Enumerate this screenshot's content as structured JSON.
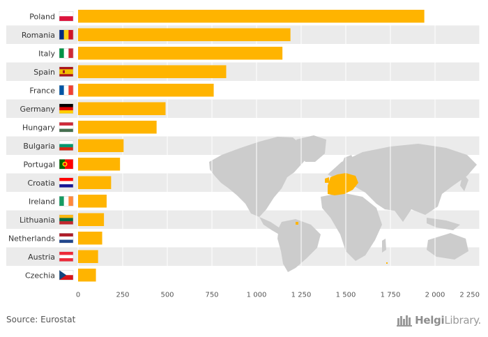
{
  "chart_data": {
    "type": "bar",
    "orientation": "horizontal",
    "categories": [
      "Poland",
      "Romania",
      "Italy",
      "Spain",
      "France",
      "Germany",
      "Hungary",
      "Bulgaria",
      "Portugal",
      "Croatia",
      "Ireland",
      "Lithuania",
      "Netherlands",
      "Austria",
      "Czechia"
    ],
    "values": [
      1940,
      1190,
      1145,
      830,
      760,
      490,
      440,
      255,
      235,
      185,
      160,
      145,
      135,
      112,
      100
    ],
    "x_ticks": [
      0,
      250,
      500,
      750,
      1000,
      1250,
      1500,
      1750,
      2000,
      2250
    ],
    "x_tick_labels": [
      "0",
      "250",
      "500",
      "750",
      "1 000",
      "1 250",
      "1 500",
      "1 750",
      "2 000",
      "2 250"
    ],
    "xlim": [
      0,
      2250
    ],
    "title": "",
    "xlabel": "",
    "ylabel": "",
    "grid": true,
    "bar_color": "#FFB400",
    "band_color": "#EBEBEB",
    "map_color": "#CCCCCC"
  },
  "flags": {
    "Poland": [
      "h",
      "#ffffff",
      "#dc143c"
    ],
    "Romania": [
      "v",
      "#002b7f",
      "#fcd116",
      "#ce1126"
    ],
    "Italy": [
      "v",
      "#009246",
      "#ffffff",
      "#ce2b37"
    ],
    "Spain": [
      "es",
      "#aa151b",
      "#f1bf00",
      "#aa151b"
    ],
    "France": [
      "v",
      "#0055a4",
      "#ffffff",
      "#ef4135"
    ],
    "Germany": [
      "h",
      "#000000",
      "#dd0000",
      "#ffce00"
    ],
    "Hungary": [
      "h",
      "#ce2939",
      "#ffffff",
      "#477050"
    ],
    "Bulgaria": [
      "h",
      "#ffffff",
      "#00966e",
      "#d62612"
    ],
    "Portugal": [
      "pt",
      "#006600",
      "#ff0000"
    ],
    "Croatia": [
      "h",
      "#ff0000",
      "#ffffff",
      "#171796"
    ],
    "Ireland": [
      "v",
      "#169b62",
      "#ffffff",
      "#ff883e"
    ],
    "Lithuania": [
      "h",
      "#fdb913",
      "#006a44",
      "#c1272d"
    ],
    "Netherlands": [
      "h",
      "#ae1c28",
      "#ffffff",
      "#21468b"
    ],
    "Austria": [
      "h",
      "#ed2939",
      "#ffffff",
      "#ed2939"
    ],
    "Czechia": [
      "cz",
      "#ffffff",
      "#d7141a",
      "#11457e"
    ]
  },
  "source": "Source: Eurostat",
  "logo": {
    "part1": "Helgi",
    "part2": "Library."
  }
}
